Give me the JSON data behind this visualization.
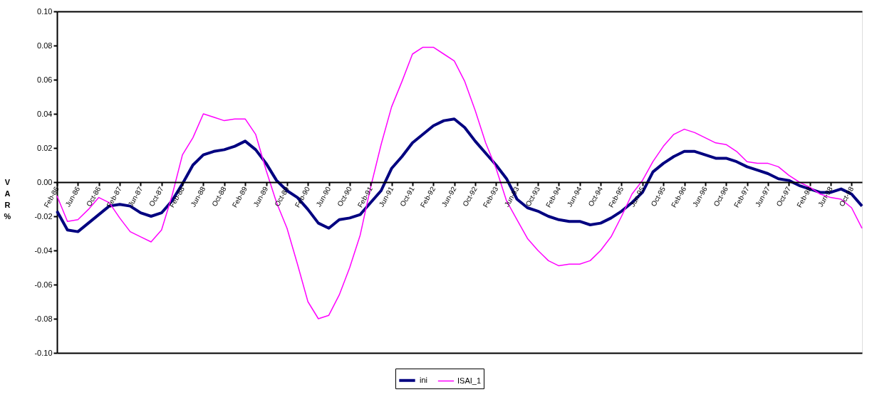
{
  "chart_data": {
    "type": "line",
    "categories": [
      "Feb-86",
      null,
      "Jun-86",
      null,
      "Oct-86",
      null,
      "Feb-87",
      null,
      "Jun-87",
      null,
      "Oct-87",
      null,
      "Feb-88",
      null,
      "Jun-88",
      null,
      "Oct-88",
      null,
      "Feb-89",
      null,
      "Jun-89",
      null,
      "Oct-89",
      null,
      "Feb-90",
      null,
      "Jun-90",
      null,
      "Oct-90",
      null,
      "Feb-91",
      null,
      "Jun-91",
      null,
      "Oct-91",
      null,
      "Feb-92",
      null,
      "Jun-92",
      null,
      "Oct-92",
      null,
      "Feb-93",
      null,
      "Jun-93",
      null,
      "Oct-93",
      null,
      "Feb-94",
      null,
      "Jun-94",
      null,
      "Oct-94",
      null,
      "Feb-95",
      null,
      "Jun-95",
      null,
      "Oct-95",
      null,
      "Feb-96",
      null,
      "Jun-96",
      null,
      "Oct-96",
      null,
      "Feb-97",
      null,
      "Jun-97",
      null,
      "Oct-97",
      null,
      "Feb-98",
      null,
      "Jun-98",
      null,
      "Oct-98",
      null
    ],
    "series": [
      {
        "name": "ini",
        "color": "#000080",
        "values": [
          -0.017,
          -0.028,
          -0.029,
          -0.024,
          -0.019,
          -0.014,
          -0.013,
          -0.014,
          -0.018,
          -0.02,
          -0.018,
          -0.011,
          -0.001,
          0.01,
          0.016,
          0.018,
          0.019,
          0.021,
          0.024,
          0.019,
          0.011,
          0.001,
          -0.005,
          -0.009,
          -0.016,
          -0.024,
          -0.027,
          -0.022,
          -0.021,
          -0.019,
          -0.012,
          -0.005,
          0.008,
          0.015,
          0.023,
          0.028,
          0.033,
          0.036,
          0.037,
          0.032,
          0.024,
          0.017,
          0.01,
          0.002,
          -0.01,
          -0.015,
          -0.017,
          -0.02,
          -0.022,
          -0.023,
          -0.023,
          -0.025,
          -0.024,
          -0.021,
          -0.017,
          -0.012,
          -0.006,
          0.006,
          0.011,
          0.015,
          0.018,
          0.018,
          0.016,
          0.014,
          0.014,
          0.012,
          0.009,
          0.007,
          0.005,
          0.002,
          0.001,
          -0.002,
          -0.004,
          -0.006,
          -0.006,
          -0.004,
          -0.007,
          -0.014
        ]
      },
      {
        "name": "ISAI_1",
        "color": "#ff00ff",
        "values": [
          -0.008,
          -0.023,
          -0.022,
          -0.016,
          -0.009,
          -0.012,
          -0.021,
          -0.029,
          -0.032,
          -0.035,
          -0.028,
          -0.008,
          0.016,
          0.026,
          0.04,
          0.038,
          0.036,
          0.037,
          0.037,
          0.028,
          0.007,
          -0.012,
          -0.027,
          -0.048,
          -0.07,
          -0.08,
          -0.078,
          -0.066,
          -0.05,
          -0.031,
          -0.003,
          0.022,
          0.044,
          0.059,
          0.075,
          0.079,
          0.079,
          0.075,
          0.071,
          0.059,
          0.042,
          0.023,
          0.008,
          -0.011,
          -0.022,
          -0.033,
          -0.04,
          -0.046,
          -0.049,
          -0.048,
          -0.048,
          -0.046,
          -0.04,
          -0.032,
          -0.02,
          -0.007,
          0.001,
          0.012,
          0.021,
          0.028,
          0.031,
          0.029,
          0.026,
          0.023,
          0.022,
          0.018,
          0.012,
          0.011,
          0.011,
          0.009,
          0.004,
          0.0,
          -0.003,
          -0.007,
          -0.009,
          -0.01,
          -0.015,
          -0.027
        ]
      }
    ],
    "ylabel": "VAR %",
    "ylim": [
      -0.1,
      0.1
    ],
    "yticks": [
      {
        "value": -0.1,
        "label": "-0.10"
      },
      {
        "value": -0.08,
        "label": "-0.08"
      },
      {
        "value": -0.06,
        "label": "-0.06"
      },
      {
        "value": -0.04,
        "label": "-0.04"
      },
      {
        "value": -0.02,
        "label": "-0.02"
      },
      {
        "value": 0,
        "label": "0.00"
      },
      {
        "value": 0.02,
        "label": "0.02"
      },
      {
        "value": 0.04,
        "label": "0.04"
      },
      {
        "value": 0.06,
        "label": "0.06"
      },
      {
        "value": 0.08,
        "label": "0.08"
      },
      {
        "value": 0.1,
        "label": "0.10"
      }
    ],
    "legend": "bottom",
    "grid": false,
    "marker": "none",
    "line_style": "solid"
  }
}
